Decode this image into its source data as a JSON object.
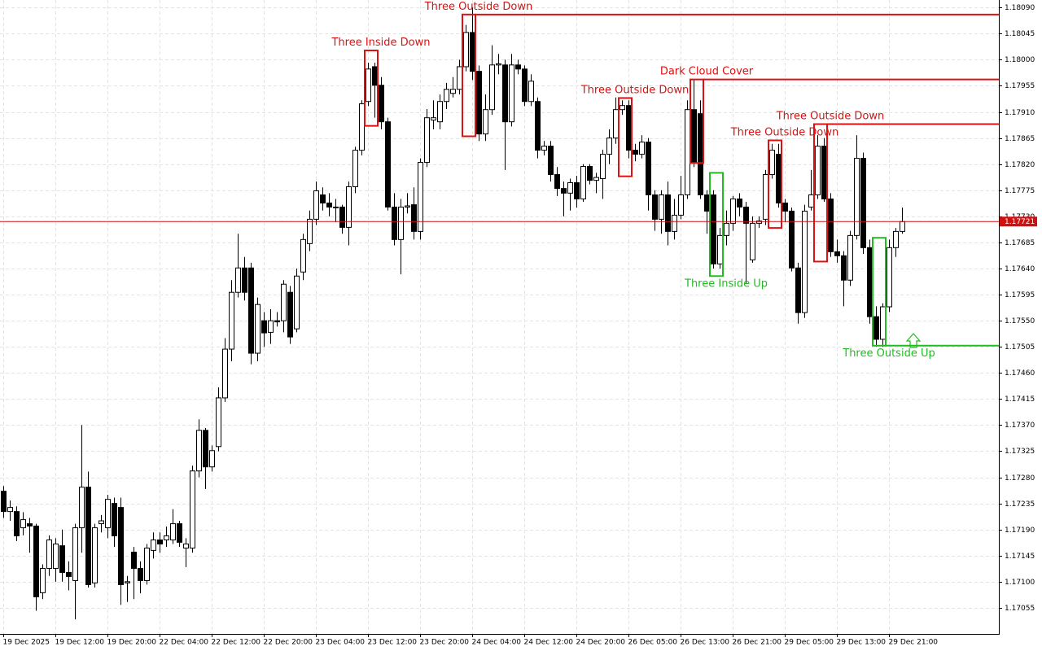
{
  "chart_data": {
    "type": "candlestick",
    "up_color": "#ffffff",
    "down_color": "#000000",
    "grid": true,
    "ylim": [
      1.1701,
      1.18103
    ],
    "yticks": [
      {
        "value": 1.1809,
        "label": "1.18090"
      },
      1.18045,
      {
        "value": 1.18,
        "label": "1.18000"
      },
      1.17955,
      {
        "value": 1.1791,
        "label": "1.17910"
      },
      1.17865,
      {
        "value": 1.1782,
        "label": "1.17820"
      },
      1.17775,
      {
        "value": 1.1773,
        "label": "1.17730"
      },
      1.17685,
      {
        "value": 1.1764,
        "label": "1.17640"
      },
      1.17595,
      {
        "value": 1.1755,
        "label": "1.17550"
      },
      1.17505,
      {
        "value": 1.1746,
        "label": "1.17460"
      },
      1.17415,
      {
        "value": 1.1737,
        "label": "1.17370"
      },
      1.17325,
      {
        "value": 1.1728,
        "label": "1.17280"
      },
      1.17235,
      {
        "value": 1.1719,
        "label": "1.17190"
      },
      1.17145,
      {
        "value": 1.171,
        "label": "1.17100"
      },
      1.17055
    ],
    "current_price": 1.17721,
    "current_price_color": "#d01010",
    "categories": [
      "19 Dec 2025",
      null,
      null,
      null,
      null,
      null,
      null,
      null,
      "19 Dec 12:00",
      null,
      null,
      null,
      null,
      null,
      null,
      null,
      "19 Dec 20:00",
      null,
      null,
      null,
      null,
      null,
      null,
      null,
      "22 Dec 04:00",
      null,
      null,
      null,
      null,
      null,
      null,
      null,
      "22 Dec 12:00",
      null,
      null,
      null,
      null,
      null,
      null,
      null,
      "22 Dec 20:00",
      null,
      null,
      null,
      null,
      null,
      null,
      null,
      "23 Dec 04:00",
      null,
      null,
      null,
      null,
      null,
      null,
      null,
      "23 Dec 12:00",
      null,
      null,
      null,
      null,
      null,
      null,
      null,
      "23 Dec 20:00",
      null,
      null,
      null,
      null,
      null,
      null,
      null,
      "24 Dec 04:00",
      null,
      null,
      null,
      null,
      null,
      null,
      null,
      "24 Dec 12:00",
      null,
      null,
      null,
      null,
      null,
      null,
      null,
      "24 Dec 20:00",
      null,
      null,
      null,
      null,
      null,
      null,
      null,
      "26 Dec 05:00",
      null,
      null,
      null,
      null,
      null,
      null,
      null,
      "26 Dec 13:00",
      null,
      null,
      null,
      null,
      null,
      null,
      null,
      "26 Dec 21:00",
      null,
      null,
      null,
      null,
      null,
      null,
      null,
      "29 Dec 05:00",
      null,
      null,
      null,
      null,
      null,
      null,
      null,
      "29 Dec 13:00",
      null,
      null,
      null,
      null,
      null,
      null,
      null,
      "29 Dec 21:00",
      null,
      null
    ],
    "ohlc": [
      [
        1.17256,
        1.17265,
        1.1721,
        1.17221
      ],
      [
        1.17221,
        1.1724,
        1.17205,
        1.17228
      ],
      [
        1.17221,
        1.1723,
        1.1717,
        1.17179
      ],
      [
        1.17193,
        1.1722,
        1.1718,
        1.17207
      ],
      [
        1.172,
        1.1721,
        1.1715,
        1.17196
      ],
      [
        1.17196,
        1.172,
        1.1705,
        1.17074
      ],
      [
        1.17081,
        1.1713,
        1.1707,
        1.17123
      ],
      [
        1.17123,
        1.1718,
        1.1711,
        1.17172
      ],
      [
        1.17123,
        1.17175,
        1.171,
        1.17165
      ],
      [
        1.17162,
        1.1719,
        1.171,
        1.17116
      ],
      [
        1.17116,
        1.17135,
        1.17085,
        1.17109
      ],
      [
        1.17102,
        1.172,
        1.17035,
        1.17193
      ],
      [
        1.17193,
        1.1737,
        1.1715,
        1.17263
      ],
      [
        1.17263,
        1.1729,
        1.1709,
        1.17095
      ],
      [
        1.17098,
        1.172,
        1.1709,
        1.17193
      ],
      [
        1.172,
        1.17215,
        1.17185,
        1.17205
      ],
      [
        1.17193,
        1.1725,
        1.17175,
        1.17242
      ],
      [
        1.17235,
        1.17245,
        1.1716,
        1.17179
      ],
      [
        1.17228,
        1.17245,
        1.1706,
        1.17095
      ],
      [
        1.17098,
        1.1711,
        1.17065,
        1.171
      ],
      [
        1.17151,
        1.1716,
        1.1707,
        1.17123
      ],
      [
        1.17123,
        1.17135,
        1.1708,
        1.17102
      ],
      [
        1.17102,
        1.17165,
        1.17095,
        1.17158
      ],
      [
        1.17154,
        1.17185,
        1.1714,
        1.17172
      ],
      [
        1.17172,
        1.17185,
        1.1715,
        1.17165
      ],
      [
        1.17172,
        1.17195,
        1.1716,
        1.17179
      ],
      [
        1.17172,
        1.17225,
        1.17165,
        1.172
      ],
      [
        1.172,
        1.17205,
        1.1716,
        1.17168
      ],
      [
        1.17158,
        1.17175,
        1.17125,
        1.17165
      ],
      [
        1.17158,
        1.173,
        1.1715,
        1.17291
      ],
      [
        1.17291,
        1.1738,
        1.1728,
        1.17361
      ],
      [
        1.17361,
        1.17365,
        1.1726,
        1.17298
      ],
      [
        1.17298,
        1.17335,
        1.1729,
        1.17326
      ],
      [
        1.17333,
        1.17435,
        1.17325,
        1.17417
      ],
      [
        1.17417,
        1.1752,
        1.1741,
        1.17501
      ],
      [
        1.17501,
        1.1762,
        1.1748,
        1.17599
      ],
      [
        1.17599,
        1.177,
        1.1759,
        1.17641
      ],
      [
        1.17641,
        1.1766,
        1.17585,
        1.17599
      ],
      [
        1.17641,
        1.1765,
        1.17475,
        1.17494
      ],
      [
        1.17494,
        1.1759,
        1.1748,
        1.17578
      ],
      [
        1.1755,
        1.17565,
        1.17505,
        1.17529
      ],
      [
        1.1753,
        1.1757,
        1.1751,
        1.1755
      ],
      [
        1.1755,
        1.17565,
        1.1754,
        1.17548
      ],
      [
        1.1755,
        1.1762,
        1.1753,
        1.17613
      ],
      [
        1.17599,
        1.1761,
        1.1751,
        1.17522
      ],
      [
        1.17536,
        1.1764,
        1.1753,
        1.17627
      ],
      [
        1.17634,
        1.177,
        1.1762,
        1.1769
      ],
      [
        1.17683,
        1.1774,
        1.1767,
        1.17725
      ],
      [
        1.17725,
        1.1779,
        1.17715,
        1.17774
      ],
      [
        1.17767,
        1.1778,
        1.1774,
        1.17753
      ],
      [
        1.17753,
        1.1777,
        1.1773,
        1.17746
      ],
      [
        1.17746,
        1.1776,
        1.1772,
        1.17745
      ],
      [
        1.17746,
        1.1775,
        1.177,
        1.17711
      ],
      [
        1.17711,
        1.1779,
        1.1768,
        1.17781
      ],
      [
        1.17781,
        1.1785,
        1.1777,
        1.17844
      ],
      [
        1.17844,
        1.1793,
        1.17835,
        1.17924
      ],
      [
        1.17928,
        1.17995,
        1.1792,
        1.17984
      ],
      [
        1.17988,
        1.17995,
        1.179,
        1.17956
      ],
      [
        1.17956,
        1.1797,
        1.1788,
        1.17893
      ],
      [
        1.17893,
        1.179,
        1.1774,
        1.17746
      ],
      [
        1.17746,
        1.1777,
        1.1768,
        1.1769
      ],
      [
        1.1769,
        1.1776,
        1.1763,
        1.17746
      ],
      [
        1.17746,
        1.1777,
        1.17735,
        1.17748
      ],
      [
        1.1775,
        1.1778,
        1.1769,
        1.17704
      ],
      [
        1.17704,
        1.1783,
        1.1769,
        1.17823
      ],
      [
        1.17823,
        1.17915,
        1.17815,
        1.179
      ],
      [
        1.17896,
        1.1793,
        1.1788,
        1.179
      ],
      [
        1.17893,
        1.1794,
        1.1788,
        1.17928
      ],
      [
        1.17928,
        1.1796,
        1.17915,
        1.17949
      ],
      [
        1.17942,
        1.1797,
        1.17935,
        1.17949
      ],
      [
        1.17949,
        1.18,
        1.1794,
        1.17988
      ],
      [
        1.17988,
        1.1806,
        1.1798,
        1.18047
      ],
      [
        1.18047,
        1.1809,
        1.17965,
        1.1798
      ],
      [
        1.1798,
        1.1799,
        1.1786,
        1.17872
      ],
      [
        1.17872,
        1.1794,
        1.1786,
        1.17914
      ],
      [
        1.17914,
        1.18025,
        1.17905,
        1.17991
      ],
      [
        1.17991,
        1.1801,
        1.17975,
        1.17993
      ],
      [
        1.17991,
        1.18,
        1.1781,
        1.17893
      ],
      [
        1.17893,
        1.1801,
        1.17885,
        1.17991
      ],
      [
        1.17991,
        1.18,
        1.17975,
        1.17984
      ],
      [
        1.17984,
        1.1799,
        1.1792,
        1.17928
      ],
      [
        1.17928,
        1.17975,
        1.1792,
        1.17963
      ],
      [
        1.17928,
        1.17935,
        1.1783,
        1.17844
      ],
      [
        1.17844,
        1.1786,
        1.17835,
        1.17851
      ],
      [
        1.17851,
        1.1786,
        1.1779,
        1.17802
      ],
      [
        1.17802,
        1.17815,
        1.17765,
        1.17778
      ],
      [
        1.17778,
        1.1779,
        1.1773,
        1.1777
      ],
      [
        1.1777,
        1.17795,
        1.1774,
        1.17788
      ],
      [
        1.17788,
        1.178,
        1.17745,
        1.1776
      ],
      [
        1.1776,
        1.1782,
        1.17755,
        1.17816
      ],
      [
        1.17816,
        1.1782,
        1.17785,
        1.17792
      ],
      [
        1.17792,
        1.17805,
        1.1777,
        1.17797
      ],
      [
        1.17795,
        1.17845,
        1.1776,
        1.17837
      ],
      [
        1.17837,
        1.1788,
        1.1782,
        1.17865
      ],
      [
        1.17865,
        1.17935,
        1.17855,
        1.17914
      ],
      [
        1.17914,
        1.1793,
        1.17905,
        1.17921
      ],
      [
        1.17921,
        1.1793,
        1.1783,
        1.17844
      ],
      [
        1.17844,
        1.17855,
        1.17825,
        1.17837
      ],
      [
        1.17837,
        1.1787,
        1.1783,
        1.17858
      ],
      [
        1.17858,
        1.17865,
        1.1774,
        1.17767
      ],
      [
        1.17767,
        1.17775,
        1.17705,
        1.17725
      ],
      [
        1.17725,
        1.17775,
        1.177,
        1.17767
      ],
      [
        1.17767,
        1.1779,
        1.1768,
        1.17704
      ],
      [
        1.17704,
        1.1776,
        1.1769,
        1.17732
      ],
      [
        1.17732,
        1.178,
        1.17725,
        1.17767
      ],
      [
        1.17767,
        1.1793,
        1.1776,
        1.17914
      ],
      [
        1.17914,
        1.17965,
        1.17815,
        1.17823
      ],
      [
        1.17907,
        1.1793,
        1.1776,
        1.17767
      ],
      [
        1.17767,
        1.17775,
        1.177,
        1.17739
      ],
      [
        1.17767,
        1.17775,
        1.1764,
        1.17648
      ],
      [
        1.17648,
        1.1771,
        1.1764,
        1.17697
      ],
      [
        1.17697,
        1.1774,
        1.1768,
        1.17718
      ],
      [
        1.17718,
        1.17765,
        1.17705,
        1.1776
      ],
      [
        1.1776,
        1.1777,
        1.1773,
        1.17746
      ],
      [
        1.17746,
        1.17755,
        1.17615,
        1.17718
      ],
      [
        1.17655,
        1.1773,
        1.1765,
        1.17718
      ],
      [
        1.17718,
        1.1773,
        1.1771,
        1.17722
      ],
      [
        1.17725,
        1.1781,
        1.17715,
        1.17802
      ],
      [
        1.17802,
        1.17855,
        1.17795,
        1.17844
      ],
      [
        1.17837,
        1.17855,
        1.17745,
        1.17753
      ],
      [
        1.17753,
        1.1776,
        1.1772,
        1.17739
      ],
      [
        1.17739,
        1.17745,
        1.17635,
        1.17641
      ],
      [
        1.17641,
        1.1765,
        1.17545,
        1.17564
      ],
      [
        1.17564,
        1.1775,
        1.17555,
        1.17739
      ],
      [
        1.17746,
        1.1781,
        1.1774,
        1.17767
      ],
      [
        1.17767,
        1.1787,
        1.1776,
        1.17851
      ],
      [
        1.17851,
        1.17865,
        1.17755,
        1.1776
      ],
      [
        1.1776,
        1.1777,
        1.1766,
        1.17669
      ],
      [
        1.17669,
        1.1769,
        1.1765,
        1.17662
      ],
      [
        1.17662,
        1.1767,
        1.17575,
        1.1762
      ],
      [
        1.1762,
        1.17705,
        1.1761,
        1.17697
      ],
      [
        1.17697,
        1.1787,
        1.1769,
        1.1783
      ],
      [
        1.1783,
        1.1784,
        1.17665,
        1.17676
      ],
      [
        1.17676,
        1.1769,
        1.17545,
        1.17557
      ],
      [
        1.17557,
        1.17575,
        1.17505,
        1.17518
      ],
      [
        1.17518,
        1.1758,
        1.17505,
        1.17574
      ],
      [
        1.17574,
        1.1769,
        1.17565,
        1.17676
      ],
      [
        1.17676,
        1.1771,
        1.1766,
        1.17704
      ],
      [
        1.17704,
        1.17745,
        1.177,
        1.17721
      ]
    ],
    "patterns": [
      {
        "label": "Three Inside Down",
        "color": "#e01010",
        "start": 56,
        "end": 57,
        "high": 1.18016,
        "low": 1.17886,
        "label_side": "above"
      },
      {
        "label": "Three Outside Down",
        "color": "#e01010",
        "start": 71,
        "end": 72,
        "high": 1.18078,
        "low": 1.17868,
        "level": 1.18078,
        "label_side": "above"
      },
      {
        "label": "Three Outside Down",
        "color": "#e01010",
        "start": 95,
        "end": 96,
        "high": 1.17934,
        "low": 1.17799,
        "label_side": "above"
      },
      {
        "label": "Dark Cloud Cover",
        "color": "#e01010",
        "start": 106,
        "end": 107,
        "high": 1.17966,
        "low": 1.17822,
        "level": 1.17966,
        "label_side": "above"
      },
      {
        "label": "Three Outside Down",
        "color": "#e01010",
        "start": 118,
        "end": 119,
        "high": 1.17861,
        "low": 1.1771,
        "label_side": "above"
      },
      {
        "label": "Three Outside Down",
        "color": "#e01010",
        "start": 125,
        "end": 126,
        "high": 1.17889,
        "low": 1.17652,
        "level": 1.17889,
        "label_side": "above"
      },
      {
        "label": "Three Inside Up",
        "color": "#22bb22",
        "start": 109,
        "end": 110,
        "high": 1.17805,
        "low": 1.17627,
        "label_side": "below"
      },
      {
        "label": "Three Outside Up",
        "color": "#22bb22",
        "start": 134,
        "end": 135,
        "high": 1.17693,
        "low": 1.17507,
        "level": 1.17507,
        "label_side": "below"
      }
    ]
  }
}
